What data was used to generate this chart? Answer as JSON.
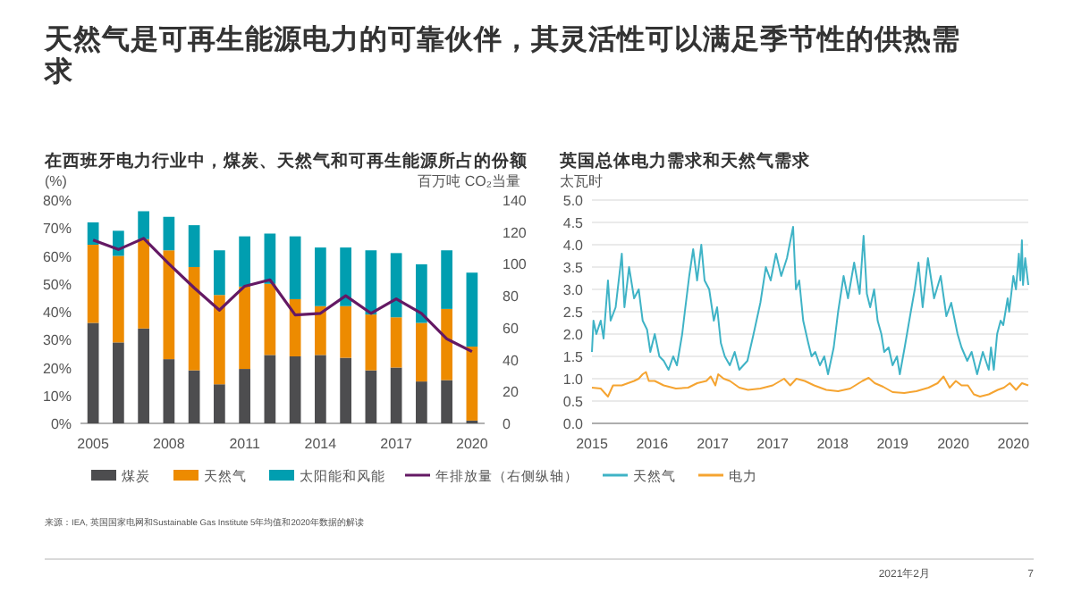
{
  "chart_data": [
    {
      "type": "bar",
      "title": "在西班牙电力行业中，煤炭、天然气和可再生能源所占的份额",
      "ylabel": "(%)",
      "y2label": "百万吨 CO₂当量",
      "stacked": true,
      "legend": "bottom",
      "categories": [
        "2005",
        null,
        null,
        "2008",
        null,
        null,
        "2011",
        null,
        null,
        "2014",
        null,
        null,
        "2017",
        null,
        null,
        "2020"
      ],
      "ylim": [
        0,
        80
      ],
      "yticks": [
        {
          "value": 0,
          "label": "0%"
        },
        {
          "value": 10,
          "label": "10%"
        },
        {
          "value": 20,
          "label": "20%"
        },
        {
          "value": 30,
          "label": "30%"
        },
        {
          "value": 40,
          "label": "40%"
        },
        {
          "value": 50,
          "label": "50%"
        },
        {
          "value": 60,
          "label": "60%"
        },
        {
          "value": 70,
          "label": "70%"
        },
        {
          "value": 80,
          "label": "80%"
        }
      ],
      "y2lim": [
        0,
        140
      ],
      "y2ticks": [
        0,
        20,
        40,
        60,
        80,
        100,
        120,
        140
      ],
      "series": [
        {
          "name": "煤炭",
          "type": "bar",
          "color": "#4d4d4f",
          "values": [
            36,
            29,
            34,
            23,
            19,
            14,
            19.5,
            24.5,
            24,
            24.5,
            23.5,
            19,
            20,
            15,
            15.5,
            1
          ]
        },
        {
          "name": "天然气",
          "type": "bar",
          "color": "#ed8b00",
          "values": [
            28,
            31,
            32,
            39,
            37,
            32,
            29.5,
            25.5,
            20.5,
            17.5,
            18.5,
            20,
            18,
            21,
            25.5,
            26.5
          ]
        },
        {
          "name": "太阳能和风能",
          "type": "bar",
          "color": "#009eb0",
          "values": [
            8,
            9,
            10,
            12,
            15,
            16,
            18,
            18,
            22.5,
            21,
            21,
            23,
            23,
            21,
            21,
            26.5
          ]
        },
        {
          "name": "年排放量（右侧纵轴）",
          "type": "line",
          "axis": "y2",
          "color": "#641964",
          "values": [
            115,
            109,
            116,
            100,
            85,
            71,
            86,
            90,
            68,
            69,
            80,
            69,
            78,
            69,
            53,
            45
          ]
        }
      ]
    },
    {
      "type": "line",
      "title": "英国总体电力需求和天然气需求",
      "ylabel": "太瓦时",
      "grid": "y",
      "legend": "bottom",
      "xlim": [
        "2015-08-01",
        "2021-01-08"
      ],
      "xticks": [
        {
          "value": "2015-08-01",
          "label": "2015"
        },
        {
          "value": "2016-05-01",
          "label": "2016"
        },
        {
          "value": "2017-02-01",
          "label": "2017"
        },
        {
          "value": "2017-11-01",
          "label": "2017"
        },
        {
          "value": "2018-08-01",
          "label": "2018"
        },
        {
          "value": "2019-05-01",
          "label": "2019"
        },
        {
          "value": "2020-02-01",
          "label": "2020"
        },
        {
          "value": "2020-11-01",
          "label": "2020"
        }
      ],
      "ylim": [
        0,
        5
      ],
      "yticks": [
        {
          "value": 0,
          "label": "0.0"
        },
        {
          "value": 0.5,
          "label": "0.5"
        },
        {
          "value": 1,
          "label": "1.0"
        },
        {
          "value": 1.5,
          "label": "1.5"
        },
        {
          "value": 2,
          "label": "2.0"
        },
        {
          "value": 2.5,
          "label": "2.5"
        },
        {
          "value": 3,
          "label": "3.0"
        },
        {
          "value": 3.5,
          "label": "3.5"
        },
        {
          "value": 4,
          "label": "4.0"
        },
        {
          "value": 4.5,
          "label": "4.5"
        },
        {
          "value": 5,
          "label": "5.0"
        }
      ],
      "series": [
        {
          "name": "天然气",
          "color": "#3fb3c6",
          "x": [
            "2015-08-01",
            "2015-08-08",
            "2015-08-21",
            "2015-09-10",
            "2015-09-23",
            "2015-10-13",
            "2015-10-25",
            "2015-11-17",
            "2015-12-15",
            "2015-12-27",
            "2016-01-17",
            "2016-02-09",
            "2016-03-01",
            "2016-03-19",
            "2016-04-08",
            "2016-04-23",
            "2016-05-13",
            "2016-06-03",
            "2016-06-23",
            "2016-07-15",
            "2016-08-05",
            "2016-08-22",
            "2016-09-15",
            "2016-09-27",
            "2016-10-17",
            "2016-11-04",
            "2016-11-22",
            "2016-12-11",
            "2016-12-26",
            "2017-01-16",
            "2017-02-06",
            "2017-02-21",
            "2017-03-10",
            "2017-03-28",
            "2017-04-20",
            "2017-05-12",
            "2017-06-02",
            "2017-07-09",
            "2017-08-06",
            "2017-09-06",
            "2017-10-01",
            "2017-10-23",
            "2017-11-16",
            "2017-12-10",
            "2018-01-05",
            "2018-02-02",
            "2018-02-15",
            "2018-03-02",
            "2018-03-20",
            "2018-04-12",
            "2018-04-27",
            "2018-05-14",
            "2018-06-04",
            "2018-06-24",
            "2018-07-11",
            "2018-08-06",
            "2018-08-26",
            "2018-09-20",
            "2018-10-10",
            "2018-11-07",
            "2018-12-02",
            "2018-12-20",
            "2019-01-04",
            "2019-01-19",
            "2019-02-06",
            "2019-02-22",
            "2019-03-11",
            "2019-03-24",
            "2019-04-13",
            "2019-05-01",
            "2019-05-21",
            "2019-06-03",
            "2019-06-25",
            "2019-07-23",
            "2019-08-10",
            "2019-08-27",
            "2019-09-15",
            "2019-10-09",
            "2019-11-06",
            "2019-12-06",
            "2020-01-01",
            "2020-01-23",
            "2020-02-21",
            "2020-03-10",
            "2020-04-05",
            "2020-04-25",
            "2020-05-20",
            "2020-06-15",
            "2020-07-12",
            "2020-07-22",
            "2020-08-04",
            "2020-08-19",
            "2020-09-04",
            "2020-09-16",
            "2020-10-06",
            "2020-10-13",
            "2020-11-01",
            "2020-11-13",
            "2020-11-26",
            "2020-12-03",
            "2020-12-10",
            "2020-12-15",
            "2020-12-25",
            "2021-01-08"
          ],
          "values": [
            1.6,
            2.3,
            2.0,
            2.3,
            1.9,
            3.2,
            2.3,
            2.6,
            3.8,
            2.6,
            3.5,
            2.8,
            3.0,
            2.3,
            2.1,
            1.6,
            2.0,
            1.5,
            1.4,
            1.2,
            1.5,
            1.3,
            2.0,
            2.5,
            3.3,
            3.9,
            3.2,
            4.0,
            3.2,
            3.0,
            2.3,
            2.6,
            1.8,
            1.5,
            1.3,
            1.6,
            1.2,
            1.4,
            2.0,
            2.7,
            3.5,
            3.2,
            3.8,
            3.3,
            3.7,
            4.4,
            3.0,
            3.2,
            2.3,
            1.8,
            1.5,
            1.6,
            1.3,
            1.5,
            1.1,
            1.7,
            2.5,
            3.3,
            2.8,
            3.6,
            2.9,
            4.2,
            2.9,
            2.6,
            3.0,
            2.3,
            2.0,
            1.6,
            1.7,
            1.3,
            1.5,
            1.1,
            1.7,
            2.5,
            3.0,
            3.6,
            2.6,
            3.7,
            2.8,
            3.3,
            2.4,
            2.7,
            2.0,
            1.7,
            1.4,
            1.6,
            1.1,
            1.6,
            1.2,
            1.7,
            1.2,
            2.0,
            2.3,
            2.2,
            2.8,
            2.5,
            3.3,
            3.0,
            3.8,
            3.2,
            4.1,
            3.1,
            3.7,
            3.1
          ]
        },
        {
          "name": "电力",
          "color": "#f5a431",
          "x": [
            "2015-08-01",
            "2015-09-10",
            "2015-10-13",
            "2015-11-05",
            "2015-12-15",
            "2016-02-09",
            "2016-03-01",
            "2016-03-19",
            "2016-04-03",
            "2016-04-16",
            "2016-05-13",
            "2016-06-23",
            "2016-08-17",
            "2016-10-12",
            "2016-11-22",
            "2017-01-03",
            "2017-01-23",
            "2017-02-13",
            "2017-02-26",
            "2017-03-23",
            "2017-04-20",
            "2017-06-02",
            "2017-07-12",
            "2017-09-06",
            "2017-11-01",
            "2017-12-23",
            "2018-01-20",
            "2018-02-17",
            "2018-03-27",
            "2018-05-09",
            "2018-07-03",
            "2018-08-26",
            "2018-10-20",
            "2018-12-15",
            "2019-01-12",
            "2019-02-09",
            "2019-03-19",
            "2019-05-01",
            "2019-06-23",
            "2019-08-17",
            "2019-10-12",
            "2019-11-22",
            "2019-12-19",
            "2020-01-16",
            "2020-02-13",
            "2020-03-10",
            "2020-04-08",
            "2020-05-05",
            "2020-06-02",
            "2020-07-12",
            "2020-08-22",
            "2020-09-19",
            "2020-10-16",
            "2020-11-13",
            "2020-12-10",
            "2021-01-08"
          ],
          "values": [
            0.8,
            0.78,
            0.6,
            0.85,
            0.85,
            0.95,
            1.0,
            1.1,
            1.15,
            0.95,
            0.95,
            0.85,
            0.78,
            0.8,
            0.9,
            0.95,
            1.05,
            0.85,
            1.1,
            1.0,
            0.95,
            0.8,
            0.75,
            0.78,
            0.85,
            1.0,
            0.85,
            1.0,
            0.95,
            0.85,
            0.75,
            0.72,
            0.78,
            0.95,
            1.02,
            0.9,
            0.82,
            0.7,
            0.68,
            0.72,
            0.8,
            0.9,
            1.05,
            0.8,
            0.95,
            0.85,
            0.85,
            0.65,
            0.6,
            0.65,
            0.75,
            0.8,
            0.9,
            0.75,
            0.9,
            0.85
          ]
        }
      ]
    },
    {
      "type": "other",
      "title": "天然气是可再生能源电力的可靠伙伴，其灵活性可以满足季节性的供热需求",
      "annotations": [
        "来源：IEA, 英国国家电网和Sustainable Gas Institute 5年均值和2020年数据的解读",
        "2021年2月",
        "7"
      ]
    }
  ]
}
